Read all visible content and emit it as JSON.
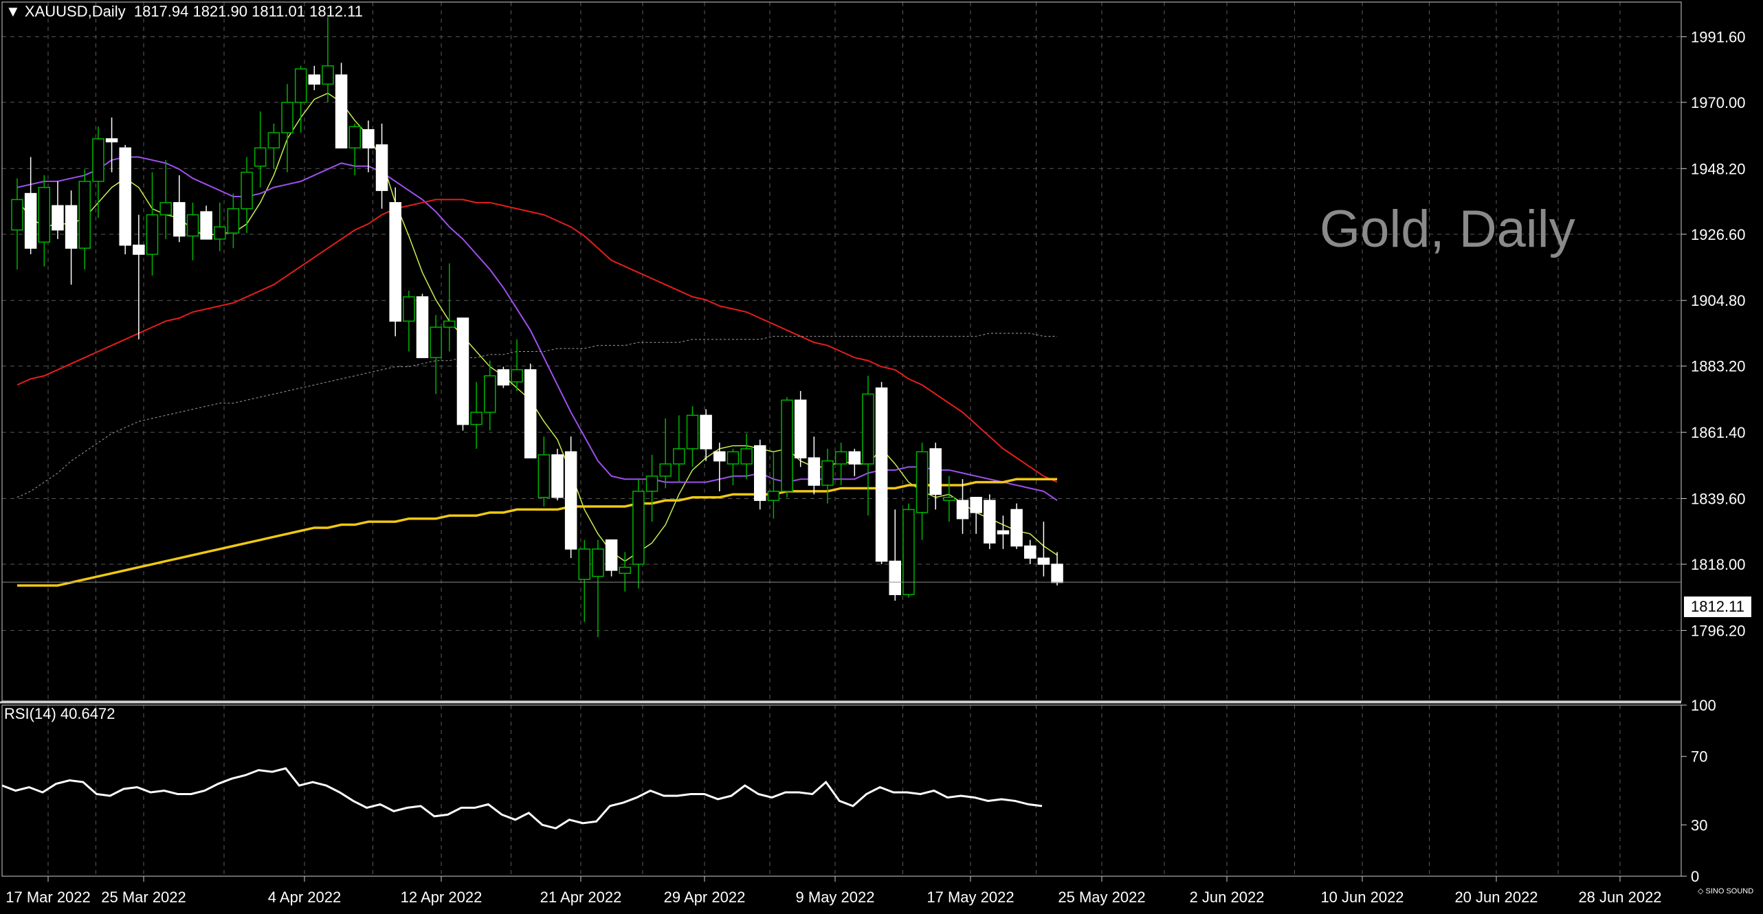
{
  "header": {
    "symbol": "XAUUSD,Daily",
    "ohlc": "1817.94 1821.90 1811.01 1812.11"
  },
  "watermark": "Gold, Daily",
  "last_price_label": "1812.11",
  "logo_text": "SINO SOUND",
  "rsi": {
    "label": "RSI(14) 40.6472",
    "levels": [
      "100",
      "70",
      "30",
      "0"
    ]
  },
  "colors": {
    "background": "#000000",
    "grid": "#5a5a5a",
    "bull_candle": "#00b400",
    "bear_candle": "#ffffff",
    "ma_fast": "#c8f050",
    "ma_mid": "#a050f0",
    "ma_slow": "#e61e1e",
    "ma_long": "#f0c814",
    "ma_longest": "#a0a0a0",
    "rsi_line": "#ffffff"
  },
  "chart_data": {
    "type": "candlestick",
    "symbol": "XAUUSD",
    "timeframe": "Daily",
    "last_price": 1812.11,
    "ylim": [
      1773,
      2003
    ],
    "y_ticks": [
      "1991.60",
      "1970.00",
      "1948.20",
      "1926.60",
      "1904.80",
      "1883.20",
      "1861.40",
      "1839.60",
      "1818.00",
      "1796.20"
    ],
    "x_ticks": [
      "17 Mar 2022",
      "25 Mar 2022",
      "4 Apr 2022",
      "12 Apr 2022",
      "21 Apr 2022",
      "29 Apr 2022",
      "9 May 2022",
      "17 May 2022",
      "25 May 2022",
      "2 Jun 2022",
      "10 Jun 2022",
      "20 Jun 2022",
      "28 Jun 2022"
    ],
    "candles": [
      {
        "o": 1928,
        "h": 1945,
        "l": 1915,
        "c": 1938
      },
      {
        "o": 1940,
        "h": 1952,
        "l": 1920,
        "c": 1922
      },
      {
        "o": 1924,
        "h": 1946,
        "l": 1916,
        "c": 1942
      },
      {
        "o": 1936,
        "h": 1944,
        "l": 1925,
        "c": 1928
      },
      {
        "o": 1936,
        "h": 1941,
        "l": 1910,
        "c": 1922
      },
      {
        "o": 1922,
        "h": 1948,
        "l": 1915,
        "c": 1944
      },
      {
        "o": 1944,
        "h": 1962,
        "l": 1932,
        "c": 1958
      },
      {
        "o": 1958,
        "h": 1965,
        "l": 1947,
        "c": 1957
      },
      {
        "o": 1955,
        "h": 1956,
        "l": 1920,
        "c": 1923
      },
      {
        "o": 1923,
        "h": 1933,
        "l": 1892,
        "c": 1920
      },
      {
        "o": 1920,
        "h": 1947,
        "l": 1913,
        "c": 1933
      },
      {
        "o": 1933,
        "h": 1951,
        "l": 1925,
        "c": 1937
      },
      {
        "o": 1937,
        "h": 1946,
        "l": 1924,
        "c": 1926
      },
      {
        "o": 1926,
        "h": 1937,
        "l": 1918,
        "c": 1933
      },
      {
        "o": 1934,
        "h": 1936,
        "l": 1925,
        "c": 1925
      },
      {
        "o": 1925,
        "h": 1937,
        "l": 1921,
        "c": 1929
      },
      {
        "o": 1927,
        "h": 1940,
        "l": 1922,
        "c": 1935
      },
      {
        "o": 1935,
        "h": 1952,
        "l": 1927,
        "c": 1947
      },
      {
        "o": 1949,
        "h": 1967,
        "l": 1942,
        "c": 1955
      },
      {
        "o": 1955,
        "h": 1963,
        "l": 1948,
        "c": 1960
      },
      {
        "o": 1960,
        "h": 1976,
        "l": 1947,
        "c": 1970
      },
      {
        "o": 1970,
        "h": 1982,
        "l": 1960,
        "c": 1981
      },
      {
        "o": 1979,
        "h": 1982,
        "l": 1974,
        "c": 1976
      },
      {
        "o": 1976,
        "h": 1998,
        "l": 1970,
        "c": 1982
      },
      {
        "o": 1979,
        "h": 1983,
        "l": 1955,
        "c": 1955
      },
      {
        "o": 1955,
        "h": 1963,
        "l": 1946,
        "c": 1962
      },
      {
        "o": 1961,
        "h": 1964,
        "l": 1947,
        "c": 1955
      },
      {
        "o": 1956,
        "h": 1963,
        "l": 1935,
        "c": 1941
      },
      {
        "o": 1937,
        "h": 1942,
        "l": 1893,
        "c": 1898
      },
      {
        "o": 1898,
        "h": 1908,
        "l": 1888,
        "c": 1906
      },
      {
        "o": 1906,
        "h": 1907,
        "l": 1886,
        "c": 1886
      },
      {
        "o": 1886,
        "h": 1900,
        "l": 1874,
        "c": 1896
      },
      {
        "o": 1896,
        "h": 1917,
        "l": 1888,
        "c": 1898
      },
      {
        "o": 1899,
        "h": 1899,
        "l": 1862,
        "c": 1864
      },
      {
        "o": 1864,
        "h": 1878,
        "l": 1856,
        "c": 1868
      },
      {
        "o": 1868,
        "h": 1885,
        "l": 1862,
        "c": 1880
      },
      {
        "o": 1882,
        "h": 1883,
        "l": 1876,
        "c": 1877
      },
      {
        "o": 1878,
        "h": 1892,
        "l": 1875,
        "c": 1882
      },
      {
        "o": 1882,
        "h": 1884,
        "l": 1853,
        "c": 1853
      },
      {
        "o": 1840,
        "h": 1860,
        "l": 1837,
        "c": 1854
      },
      {
        "o": 1854,
        "h": 1856,
        "l": 1839,
        "c": 1840
      },
      {
        "o": 1855,
        "h": 1860,
        "l": 1820,
        "c": 1823
      },
      {
        "o": 1813,
        "h": 1826,
        "l": 1799,
        "c": 1823
      },
      {
        "o": 1814,
        "h": 1826,
        "l": 1794,
        "c": 1823
      },
      {
        "o": 1826,
        "h": 1826,
        "l": 1814,
        "c": 1816
      },
      {
        "o": 1815,
        "h": 1822,
        "l": 1809,
        "c": 1817
      },
      {
        "o": 1818,
        "h": 1846,
        "l": 1810,
        "c": 1842
      },
      {
        "o": 1842,
        "h": 1854,
        "l": 1832,
        "c": 1847
      },
      {
        "o": 1847,
        "h": 1866,
        "l": 1843,
        "c": 1851
      },
      {
        "o": 1851,
        "h": 1867,
        "l": 1845,
        "c": 1856
      },
      {
        "o": 1856,
        "h": 1870,
        "l": 1850,
        "c": 1867
      },
      {
        "o": 1867,
        "h": 1869,
        "l": 1852,
        "c": 1856
      },
      {
        "o": 1855,
        "h": 1858,
        "l": 1842,
        "c": 1852
      },
      {
        "o": 1851,
        "h": 1856,
        "l": 1844,
        "c": 1855
      },
      {
        "o": 1851,
        "h": 1861,
        "l": 1846,
        "c": 1856
      },
      {
        "o": 1857,
        "h": 1859,
        "l": 1836,
        "c": 1839
      },
      {
        "o": 1839,
        "h": 1855,
        "l": 1833,
        "c": 1842
      },
      {
        "o": 1842,
        "h": 1873,
        "l": 1840,
        "c": 1872
      },
      {
        "o": 1872,
        "h": 1875,
        "l": 1850,
        "c": 1853
      },
      {
        "o": 1853,
        "h": 1860,
        "l": 1841,
        "c": 1844
      },
      {
        "o": 1844,
        "h": 1856,
        "l": 1838,
        "c": 1852
      },
      {
        "o": 1851,
        "h": 1858,
        "l": 1844,
        "c": 1855
      },
      {
        "o": 1855,
        "h": 1856,
        "l": 1847,
        "c": 1851
      },
      {
        "o": 1851,
        "h": 1880,
        "l": 1834,
        "c": 1874
      },
      {
        "o": 1876,
        "h": 1878,
        "l": 1818,
        "c": 1819
      },
      {
        "o": 1819,
        "h": 1836,
        "l": 1806,
        "c": 1808
      },
      {
        "o": 1808,
        "h": 1838,
        "l": 1807,
        "c": 1836
      },
      {
        "o": 1835,
        "h": 1858,
        "l": 1826,
        "c": 1855
      },
      {
        "o": 1856,
        "h": 1858,
        "l": 1836,
        "c": 1841
      },
      {
        "o": 1839,
        "h": 1847,
        "l": 1832,
        "c": 1840
      },
      {
        "o": 1839,
        "h": 1846,
        "l": 1828,
        "c": 1833
      },
      {
        "o": 1840,
        "h": 1840,
        "l": 1828,
        "c": 1835
      },
      {
        "o": 1839,
        "h": 1841,
        "l": 1823,
        "c": 1825
      },
      {
        "o": 1829,
        "h": 1834,
        "l": 1823,
        "c": 1828
      },
      {
        "o": 1836,
        "h": 1838,
        "l": 1823,
        "c": 1824
      },
      {
        "o": 1824,
        "h": 1826,
        "l": 1818,
        "c": 1820
      },
      {
        "o": 1820,
        "h": 1832,
        "l": 1814,
        "c": 1818
      },
      {
        "o": 1818,
        "h": 1822,
        "l": 1811,
        "c": 1812
      }
    ],
    "moving_averages": [
      {
        "values": [
          1938,
          1932,
          1929,
          1930,
          1930,
          1932,
          1937,
          1942,
          1945,
          1942,
          1935,
          1933,
          1932,
          1928,
          1926,
          1927,
          1927,
          1930,
          1937,
          1946,
          1958,
          1965,
          1971,
          1973,
          1970,
          1964,
          1959,
          1951,
          1937,
          1926,
          1914,
          1905,
          1898,
          1893,
          1888,
          1883,
          1880,
          1876,
          1872,
          1865,
          1859,
          1848,
          1836,
          1828,
          1822,
          1819,
          1822,
          1825,
          1831,
          1841,
          1849,
          1853,
          1856,
          1857,
          1857,
          1856,
          1855,
          1856,
          1852,
          1850,
          1850,
          1852,
          1851,
          1851,
          1856,
          1851,
          1845,
          1842,
          1840,
          1841,
          1838,
          1835,
          1833,
          1831,
          1829,
          1828,
          1824,
          1821
        ]
      },
      {
        "values": [
          1942,
          1943,
          1944,
          1944,
          1945,
          1946,
          1948,
          1951,
          1952,
          1952,
          1951,
          1950,
          1948,
          1945,
          1943,
          1941,
          1939,
          1939,
          1940,
          1942,
          1943,
          1944,
          1946,
          1948,
          1950,
          1949,
          1949,
          1947,
          1944,
          1941,
          1938,
          1934,
          1929,
          1925,
          1920,
          1915,
          1909,
          1902,
          1895,
          1886,
          1877,
          1868,
          1860,
          1852,
          1847,
          1846,
          1846,
          1846,
          1845,
          1845,
          1845,
          1845,
          1846,
          1847,
          1847,
          1848,
          1846,
          1845,
          1846,
          1846,
          1846,
          1846,
          1846,
          1848,
          1849,
          1849,
          1850,
          1850,
          1849,
          1849,
          1848,
          1847,
          1846,
          1845,
          1844,
          1843,
          1842,
          1839
        ]
      },
      {
        "values": [
          1877,
          1879,
          1880,
          1882,
          1884,
          1886,
          1888,
          1890,
          1892,
          1894,
          1896,
          1898,
          1899,
          1901,
          1902,
          1903,
          1904,
          1906,
          1908,
          1910,
          1913,
          1916,
          1919,
          1922,
          1925,
          1928,
          1930,
          1933,
          1935,
          1936,
          1937,
          1938,
          1938,
          1938,
          1937,
          1937,
          1936,
          1935,
          1934,
          1933,
          1931,
          1929,
          1926,
          1922,
          1918,
          1916,
          1914,
          1912,
          1910,
          1908,
          1906,
          1905,
          1903,
          1902,
          1901,
          1899,
          1897,
          1895,
          1893,
          1891,
          1890,
          1888,
          1886,
          1885,
          1883,
          1882,
          1879,
          1877,
          1874,
          1871,
          1868,
          1864,
          1860,
          1856,
          1853,
          1850,
          1847,
          1845
        ]
      },
      {
        "values": [
          1811,
          1811,
          1811,
          1811,
          1812,
          1813,
          1814,
          1815,
          1816,
          1817,
          1818,
          1819,
          1820,
          1821,
          1822,
          1823,
          1824,
          1825,
          1826,
          1827,
          1828,
          1829,
          1830,
          1830,
          1831,
          1831,
          1832,
          1832,
          1832,
          1833,
          1833,
          1833,
          1834,
          1834,
          1834,
          1835,
          1835,
          1836,
          1836,
          1836,
          1836,
          1837,
          1837,
          1837,
          1837,
          1837,
          1838,
          1838,
          1839,
          1839,
          1840,
          1840,
          1840,
          1841,
          1841,
          1841,
          1841,
          1842,
          1842,
          1842,
          1842,
          1843,
          1843,
          1843,
          1843,
          1843,
          1844,
          1844,
          1844,
          1844,
          1844,
          1845,
          1845,
          1845,
          1846,
          1846,
          1846,
          1846
        ]
      },
      {
        "values": [
          1840,
          1842,
          1845,
          1848,
          1852,
          1855,
          1858,
          1861,
          1863,
          1865,
          1866,
          1867,
          1868,
          1869,
          1870,
          1871,
          1871,
          1872,
          1873,
          1874,
          1875,
          1876,
          1877,
          1878,
          1879,
          1880,
          1881,
          1882,
          1883,
          1883,
          1884,
          1885,
          1885,
          1886,
          1886,
          1887,
          1887,
          1888,
          1888,
          1888,
          1889,
          1889,
          1889,
          1890,
          1890,
          1890,
          1891,
          1891,
          1891,
          1891,
          1892,
          1892,
          1892,
          1892,
          1892,
          1892,
          1893,
          1893,
          1893,
          1893,
          1893,
          1893,
          1893,
          1893,
          1893,
          1893,
          1893,
          1893,
          1893,
          1893,
          1893,
          1893,
          1894,
          1894,
          1894,
          1894,
          1893,
          1893
        ]
      }
    ],
    "rsi_period": 14,
    "rsi_ylim": [
      0,
      100
    ],
    "rsi_values": [
      53,
      50,
      52,
      49,
      54,
      56,
      55,
      48,
      47,
      51,
      52,
      49,
      50,
      48,
      48,
      50,
      54,
      57,
      59,
      62,
      61,
      63,
      53,
      55,
      53,
      49,
      44,
      40,
      42,
      38,
      40,
      41,
      35,
      36,
      40,
      40,
      42,
      36,
      33,
      37,
      30,
      28,
      33,
      31,
      32,
      41,
      43,
      46,
      50,
      47,
      47,
      48,
      48,
      45,
      47,
      53,
      48,
      46,
      49,
      49,
      48,
      55,
      44,
      41,
      48,
      52,
      49,
      49,
      48,
      50,
      46,
      47,
      46,
      44,
      45,
      44,
      42,
      41
    ]
  }
}
